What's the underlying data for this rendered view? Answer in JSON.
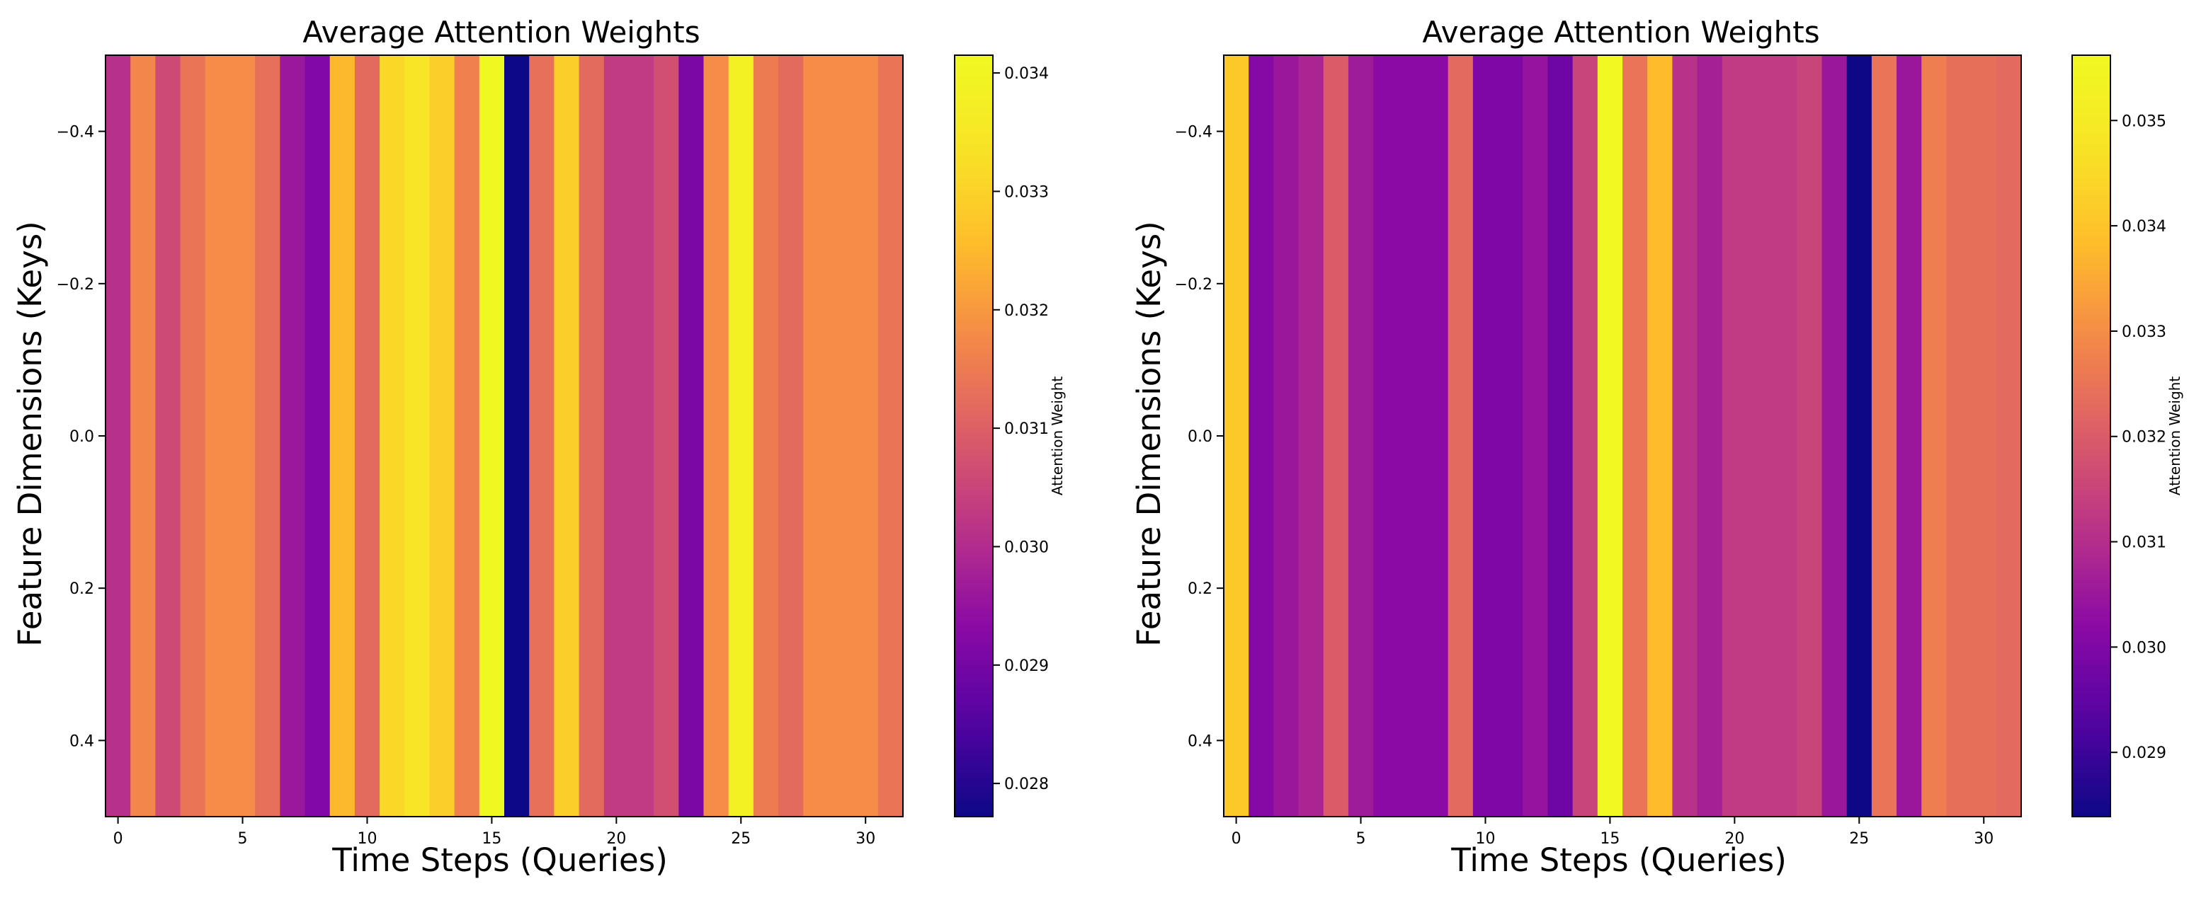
{
  "chart_data": [
    {
      "type": "heatmap",
      "title": "Average Attention Weights",
      "xlabel": "Time Steps (Queries)",
      "ylabel": "Feature Dimensions (Keys)",
      "colorbar_label": "Attention Weight",
      "colormap": "plasma",
      "x_ticks": [
        0,
        5,
        10,
        15,
        20,
        25,
        30
      ],
      "y_ticks": [
        -0.4,
        -0.2,
        0.0,
        0.2,
        0.4
      ],
      "y_tick_labels": [
        "−0.4",
        "−0.2",
        "0.0",
        "0.2",
        "0.4"
      ],
      "xlim": [
        -0.5,
        31.5
      ],
      "ylim": [
        0.5,
        -0.5
      ],
      "value_range": [
        0.02772,
        0.03415
      ],
      "colorbar_ticks": [
        0.028,
        0.029,
        0.03,
        0.031,
        0.032,
        0.033,
        0.034
      ],
      "colorbar_tick_labels": [
        "0.028",
        "0.029",
        "0.030",
        "0.031",
        "0.032",
        "0.033",
        "0.034"
      ],
      "values": [
        0.0301,
        0.0317,
        0.0306,
        0.0314,
        0.0318,
        0.0318,
        0.0313,
        0.0296,
        0.0292,
        0.0325,
        0.0312,
        0.0331,
        0.0334,
        0.0329,
        0.0316,
        0.0341,
        0.0277,
        0.0313,
        0.0329,
        0.0312,
        0.0303,
        0.0303,
        0.0307,
        0.0291,
        0.0318,
        0.0338,
        0.0315,
        0.0312,
        0.0318,
        0.0318,
        0.0318,
        0.0314
      ]
    },
    {
      "type": "heatmap",
      "title": "Average Attention Weights",
      "xlabel": "Time Steps (Queries)",
      "ylabel": "Feature Dimensions (Keys)",
      "colorbar_label": "Attention Weight",
      "colormap": "plasma",
      "x_ticks": [
        0,
        5,
        10,
        15,
        20,
        25,
        30
      ],
      "y_ticks": [
        -0.4,
        -0.2,
        0.0,
        0.2,
        0.4
      ],
      "y_tick_labels": [
        "−0.4",
        "−0.2",
        "0.0",
        "0.2",
        "0.4"
      ],
      "xlim": [
        -0.5,
        31.5
      ],
      "ylim": [
        0.5,
        -0.5
      ],
      "value_range": [
        0.02839,
        0.03562
      ],
      "colorbar_ticks": [
        0.029,
        0.03,
        0.031,
        0.032,
        0.033,
        0.034,
        0.035
      ],
      "colorbar_tick_labels": [
        "0.029",
        "0.030",
        "0.031",
        "0.032",
        "0.033",
        "0.034",
        "0.035"
      ],
      "values": [
        0.0341,
        0.0301,
        0.0305,
        0.0308,
        0.032,
        0.0306,
        0.0302,
        0.0302,
        0.0302,
        0.0323,
        0.03,
        0.03,
        0.0304,
        0.0297,
        0.0315,
        0.0356,
        0.0325,
        0.0338,
        0.0311,
        0.0307,
        0.0313,
        0.0313,
        0.0313,
        0.0315,
        0.0305,
        0.0284,
        0.0325,
        0.0305,
        0.0327,
        0.0324,
        0.0324,
        0.0323
      ]
    }
  ]
}
